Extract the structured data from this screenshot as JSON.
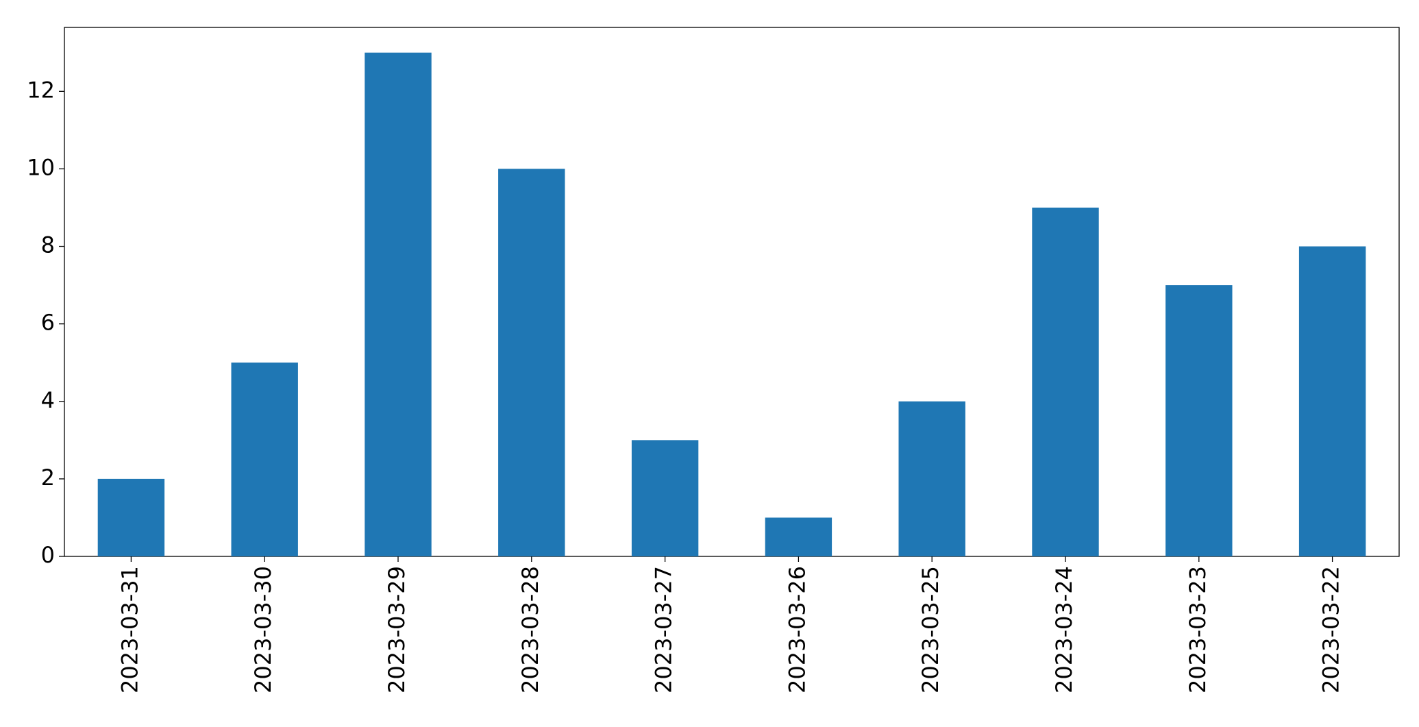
{
  "chart_data": {
    "type": "bar",
    "categories": [
      "2023-03-31",
      "2023-03-30",
      "2023-03-29",
      "2023-03-28",
      "2023-03-27",
      "2023-03-26",
      "2023-03-25",
      "2023-03-24",
      "2023-03-23",
      "2023-03-22"
    ],
    "values": [
      2,
      5,
      13,
      10,
      3,
      1,
      4,
      9,
      7,
      8
    ],
    "color": "#1f77b4",
    "ylim": [
      0,
      13.65
    ],
    "yticks": [
      0,
      2,
      4,
      6,
      8,
      10,
      12
    ],
    "grid": false
  }
}
